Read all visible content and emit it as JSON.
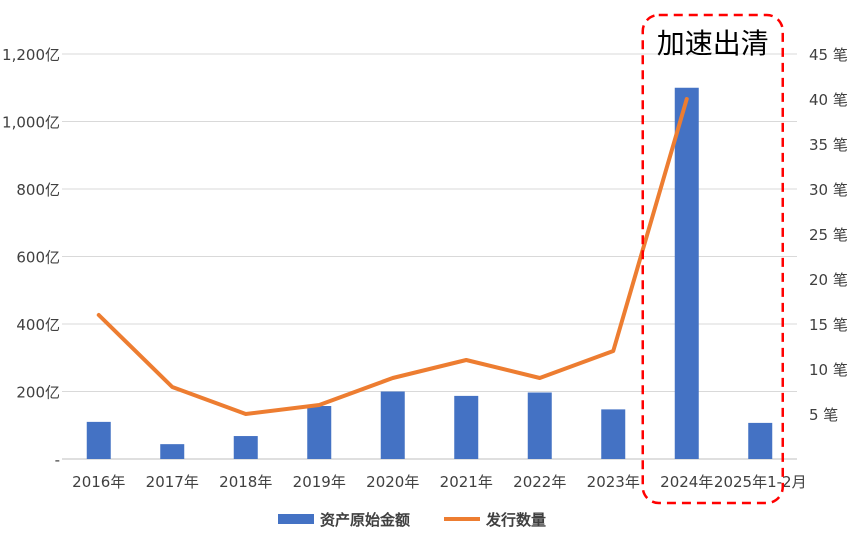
{
  "chart_data": {
    "type": "bar",
    "title": "",
    "categories": [
      "2016年",
      "2017年",
      "2018年",
      "2019年",
      "2020年",
      "2021年",
      "2022年",
      "2023年",
      "2024年",
      "2025年1-2月"
    ],
    "series": [
      {
        "name": "资产原始金额",
        "kind": "bar",
        "axis": "left",
        "color": "#4472C4",
        "values": [
          110,
          44,
          68,
          157,
          200,
          187,
          197,
          147,
          1100,
          107
        ]
      },
      {
        "name": "发行数量",
        "kind": "line",
        "axis": "right",
        "color": "#ED7D31",
        "values": [
          16,
          8,
          5,
          6,
          9,
          11,
          9,
          12,
          40,
          null
        ]
      }
    ],
    "y_left": {
      "lim": [
        0,
        1200
      ],
      "ticks": [
        0,
        200,
        400,
        600,
        800,
        1000,
        1200
      ],
      "tick_labels": [
        "-",
        "200亿",
        "400亿",
        "600亿",
        "800亿",
        "1,000亿",
        "1,200亿"
      ]
    },
    "y_right": {
      "lim": [
        0,
        45
      ],
      "ticks": [
        5,
        10,
        15,
        20,
        25,
        30,
        35,
        40,
        45
      ],
      "tick_labels": [
        "5 笔",
        "10 笔",
        "15 笔",
        "20 笔",
        "25 笔",
        "30 笔",
        "35 笔",
        "40 笔",
        "45 笔"
      ]
    },
    "grid": true,
    "legend_position": "bottom",
    "annotation": {
      "text": "加速出清",
      "target_category": "2024年",
      "box_color": "#FF0000",
      "style": "dashed"
    }
  }
}
